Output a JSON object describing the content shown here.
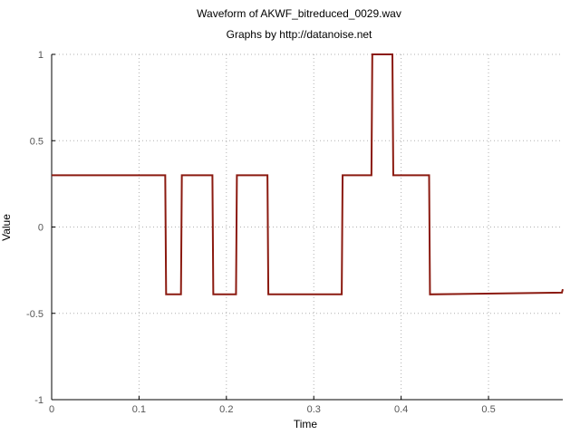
{
  "chart_data": {
    "type": "line",
    "title": "Waveform of AKWF_bitreduced_0029.wav",
    "subtitle": "Graphs by http://datanoise.net",
    "xlabel": "Time",
    "ylabel": "Value",
    "xlim": [
      0,
      0.585
    ],
    "ylim": [
      -1,
      1
    ],
    "xticks": [
      0,
      0.1,
      0.2,
      0.3,
      0.4,
      0.5
    ],
    "xtick_labels": [
      "0",
      "0.1",
      "0.2",
      "0.3",
      "0.4",
      "0.5"
    ],
    "yticks": [
      -1,
      -0.5,
      0,
      0.5,
      1
    ],
    "ytick_labels": [
      "-1",
      "-0.5",
      "0",
      "0.5",
      "1"
    ],
    "grid": true,
    "legend": "none",
    "line_color": "#8b1a10",
    "series": [
      {
        "x": [
          0,
          0.13,
          0.131,
          0.148,
          0.149,
          0.184,
          0.185,
          0.211,
          0.212,
          0.247,
          0.248,
          0.332,
          0.333,
          0.366,
          0.367,
          0.39,
          0.391,
          0.432,
          0.433,
          0.584,
          0.585
        ],
        "y": [
          0.3,
          0.3,
          -0.39,
          -0.39,
          0.3,
          0.3,
          -0.39,
          -0.39,
          0.3,
          0.3,
          -0.39,
          -0.39,
          0.3,
          0.3,
          1.0,
          1.0,
          0.3,
          0.3,
          -0.39,
          -0.38,
          -0.36
        ]
      }
    ]
  }
}
